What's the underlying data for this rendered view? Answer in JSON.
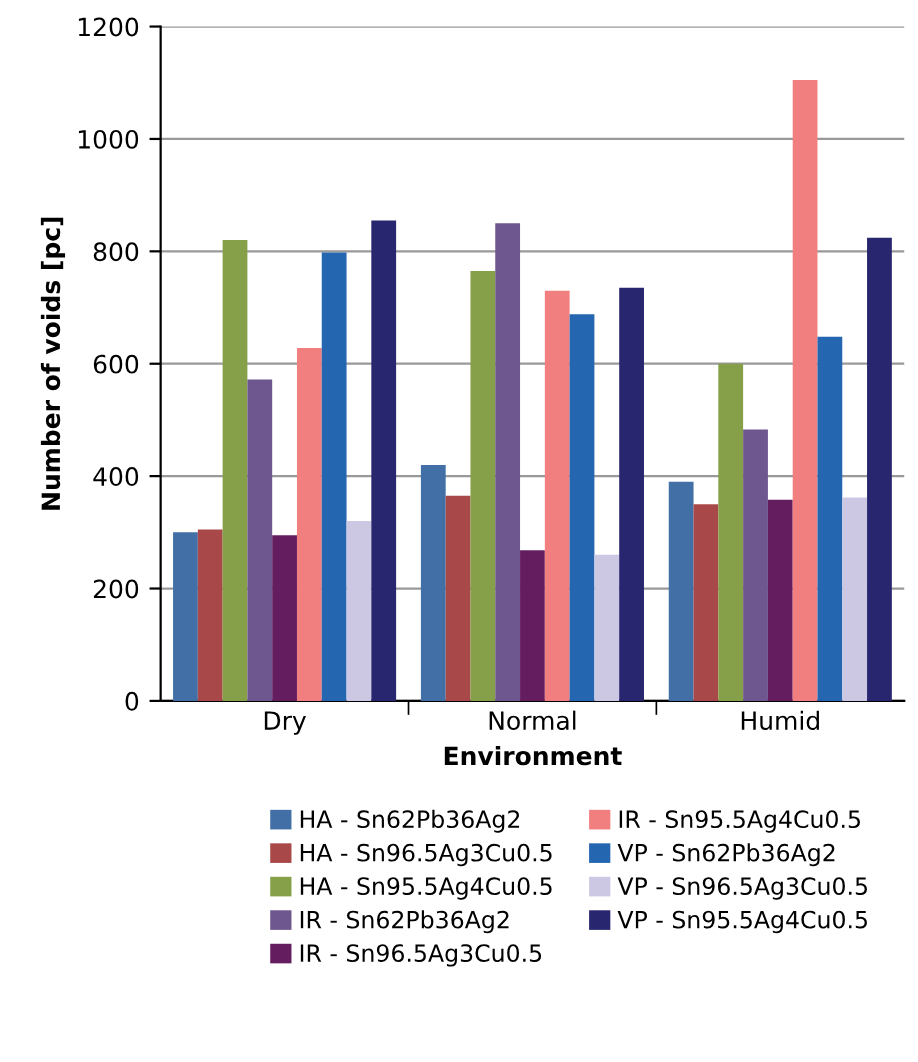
{
  "chart_data": {
    "type": "bar",
    "xlabel": "Environment",
    "ylabel": "Number of voids [pc]",
    "categories": [
      "Dry",
      "Normal",
      "Humid"
    ],
    "series": [
      {
        "name": "HA - Sn62Pb36Ag2",
        "color": "#4270a6",
        "values": [
          300,
          420,
          390
        ]
      },
      {
        "name": "HA - Sn96.5Ag3Cu0.5",
        "color": "#a84848",
        "values": [
          305,
          365,
          350
        ]
      },
      {
        "name": "HA - Sn95.5Ag4Cu0.5",
        "color": "#86a04a",
        "values": [
          820,
          765,
          600
        ]
      },
      {
        "name": "IR - Sn62Pb36Ag2",
        "color": "#6e568e",
        "values": [
          572,
          850,
          483
        ]
      },
      {
        "name": "IR - Sn96.5Ag3Cu0.5",
        "color": "#641e60",
        "values": [
          295,
          268,
          358
        ]
      },
      {
        "name": "IR - Sn95.5Ag4Cu0.5",
        "color": "#f27f7f",
        "values": [
          628,
          730,
          1105
        ]
      },
      {
        "name": "VP - Sn62Pb36Ag2",
        "color": "#2466b0",
        "values": [
          798,
          688,
          648
        ]
      },
      {
        "name": "VP - Sn96.5Ag3Cu0.5",
        "color": "#ccc8e4",
        "values": [
          320,
          260,
          362
        ]
      },
      {
        "name": "VP - Sn95.5Ag4Cu0.5",
        "color": "#27266e",
        "values": [
          855,
          735,
          824
        ]
      }
    ],
    "ylim": [
      0,
      1200
    ],
    "yticks": [
      0,
      200,
      400,
      600,
      800,
      1000,
      1200
    ],
    "grid": "y",
    "legend": "bottom"
  }
}
